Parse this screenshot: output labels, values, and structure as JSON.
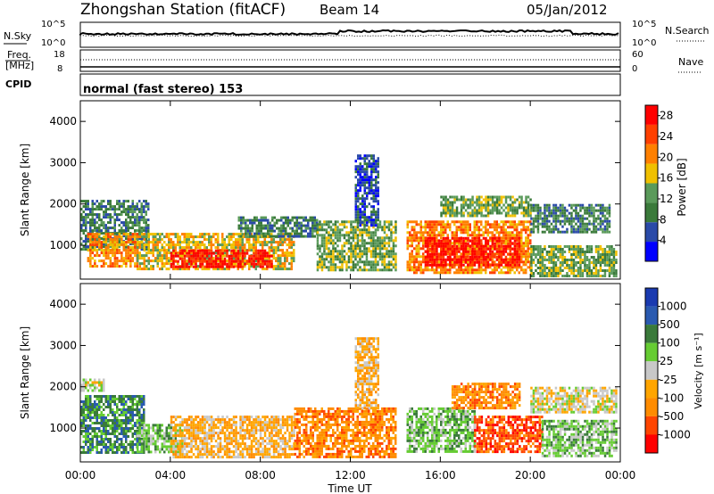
{
  "header": {
    "title": "Zhongshan Station (fitACF)",
    "beam": "Beam 14",
    "date": "05/Jan/2012"
  },
  "strip": {
    "left_labels": [
      "N.Sky",
      "Freq.",
      "[MHz]",
      "CPID"
    ],
    "right_labels": [
      "N.Search",
      "Nave"
    ],
    "nsky_ticks": [
      "10^5",
      "10^0"
    ],
    "nsearch_ticks": [
      "10^5",
      "10^0"
    ],
    "freq_ticks": [
      "18",
      "8"
    ],
    "nave_ticks": [
      "60",
      "0"
    ],
    "cpid_text": "normal (fast stereo) 153"
  },
  "x_axis": {
    "label": "Time UT",
    "ticks": [
      "00:00",
      "04:00",
      "08:00",
      "12:00",
      "16:00",
      "20:00",
      "00:00"
    ]
  },
  "colors": {
    "power": [
      "#0000ff",
      "#2a4aa8",
      "#3a7a3a",
      "#5a9a5a",
      "#f0c000",
      "#ff8000",
      "#ff4000",
      "#ff0000"
    ],
    "velocity": [
      "#ff0000",
      "#ff4500",
      "#ff8c00",
      "#ffa500",
      "#c8c8c8",
      "#66cc33",
      "#3a7a3a",
      "#2a5ab0",
      "#1a3ab0"
    ]
  },
  "chart_data": [
    {
      "type": "heatmap",
      "title": "",
      "xlabel": "",
      "ylabel": "Slant Range [km]",
      "xlim": [
        0,
        24
      ],
      "ylim": [
        180,
        4500
      ],
      "y_ticks": [
        "1000",
        "2000",
        "3000",
        "4000"
      ],
      "y_tick_values": [
        1000,
        2000,
        3000,
        4000
      ],
      "colorbar_label": "Power [dB]",
      "colorbar_ticks": [
        "4",
        "8",
        "12",
        "16",
        "20",
        "24",
        "28"
      ],
      "colorbar_range": [
        0,
        30
      ],
      "regions": [
        {
          "t0": 0.0,
          "t1": 3.0,
          "r0": 900,
          "r1": 2100,
          "level": 2
        },
        {
          "t0": 0.3,
          "t1": 2.5,
          "r0": 500,
          "r1": 1300,
          "level": 5
        },
        {
          "t0": 2.5,
          "t1": 9.5,
          "r0": 400,
          "r1": 1300,
          "level": 4
        },
        {
          "t0": 4.0,
          "t1": 8.5,
          "r0": 450,
          "r1": 900,
          "level": 7
        },
        {
          "t0": 7.0,
          "t1": 10.5,
          "r0": 1200,
          "r1": 1700,
          "level": 2
        },
        {
          "t0": 10.5,
          "t1": 14.0,
          "r0": 400,
          "r1": 1600,
          "level": 3
        },
        {
          "t0": 12.2,
          "t1": 13.2,
          "r0": 1500,
          "r1": 3200,
          "level": 1
        },
        {
          "t0": 14.5,
          "t1": 20.0,
          "r0": 350,
          "r1": 1600,
          "level": 5
        },
        {
          "t0": 15.3,
          "t1": 19.5,
          "r0": 550,
          "r1": 1200,
          "level": 7
        },
        {
          "t0": 16.0,
          "t1": 20.0,
          "r0": 1700,
          "r1": 2200,
          "level": 3
        },
        {
          "t0": 20.0,
          "t1": 23.5,
          "r0": 1300,
          "r1": 2000,
          "level": 2
        },
        {
          "t0": 20.0,
          "t1": 23.8,
          "r0": 250,
          "r1": 1000,
          "level": 3
        }
      ]
    },
    {
      "type": "heatmap",
      "title": "",
      "xlabel": "Time UT",
      "ylabel": "Slant Range [km]",
      "xlim": [
        0,
        24
      ],
      "ylim": [
        180,
        4500
      ],
      "y_ticks": [
        "1000",
        "2000",
        "3000",
        "4000"
      ],
      "y_tick_values": [
        1000,
        2000,
        3000,
        4000
      ],
      "colorbar_label": "Velocity [m s⁻¹]",
      "colorbar_ticks": [
        "1000",
        "500",
        "100",
        "25",
        "-25",
        "-100",
        "-500",
        "-1000"
      ],
      "regions": [
        {
          "t0": 0.0,
          "t1": 2.8,
          "r0": 400,
          "r1": 1800,
          "level": 6
        },
        {
          "t0": 0.0,
          "t1": 1.0,
          "r0": 1900,
          "r1": 2200,
          "level": 4
        },
        {
          "t0": 2.5,
          "t1": 4.5,
          "r0": 400,
          "r1": 1100,
          "level": 5
        },
        {
          "t0": 4.0,
          "t1": 9.5,
          "r0": 300,
          "r1": 1300,
          "level": 3
        },
        {
          "t0": 9.5,
          "t1": 14.0,
          "r0": 300,
          "r1": 1500,
          "level": 2
        },
        {
          "t0": 12.2,
          "t1": 13.2,
          "r0": 1500,
          "r1": 3200,
          "level": 3
        },
        {
          "t0": 14.5,
          "t1": 17.5,
          "r0": 400,
          "r1": 1500,
          "level": 5
        },
        {
          "t0": 16.5,
          "t1": 19.5,
          "r0": 1500,
          "r1": 2100,
          "level": 2
        },
        {
          "t0": 17.5,
          "t1": 20.5,
          "r0": 400,
          "r1": 1300,
          "level": 1
        },
        {
          "t0": 20.0,
          "t1": 23.8,
          "r0": 1400,
          "r1": 2000,
          "level": 4
        },
        {
          "t0": 20.5,
          "t1": 23.8,
          "r0": 300,
          "r1": 1200,
          "level": 5
        }
      ]
    }
  ]
}
